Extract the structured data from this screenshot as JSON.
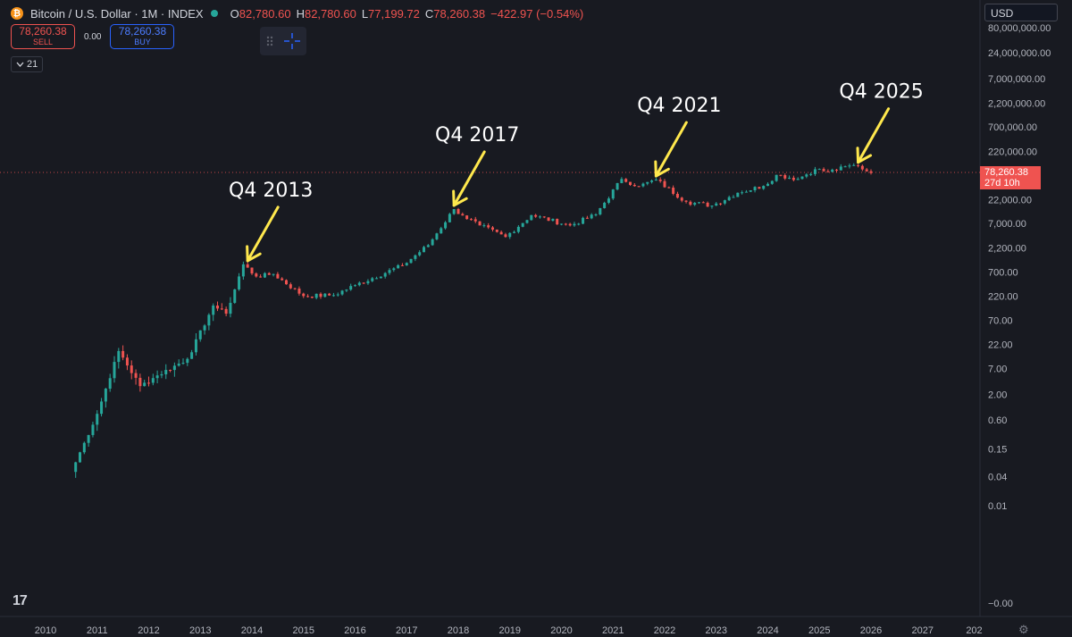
{
  "header": {
    "coin_glyph": "₿",
    "symbol": "Bitcoin / U.S. Dollar · 1M · INDEX",
    "ohlc": [
      {
        "key": "O",
        "value": "82,780.60"
      },
      {
        "key": "H",
        "value": "82,780.60"
      },
      {
        "key": "L",
        "value": "77,199.72"
      },
      {
        "key": "C",
        "value": "78,260.38"
      }
    ],
    "change": "−422.97 (−0.54%)"
  },
  "trade": {
    "sell_price": "78,260.38",
    "sell_label": "SELL",
    "spread": "0.00",
    "buy_price": "78,260.38",
    "buy_label": "BUY"
  },
  "indicator_badge": "21",
  "currency": "USD",
  "price_tag": {
    "price": "78,260.38",
    "countdown": "27d 10h",
    "value": 78260.38
  },
  "logo_text": "17",
  "colors": {
    "up": "#26a69a",
    "down": "#ef5350",
    "annotation": "#ffe84d",
    "background": "#181a21"
  },
  "chart_data": {
    "type": "candlestick",
    "y_scale": "log",
    "x_ticks": [
      "2010",
      "2011",
      "2012",
      "2013",
      "2014",
      "2015",
      "2016",
      "2017",
      "2018",
      "2019",
      "2020",
      "2021",
      "2022",
      "2023",
      "2024",
      "2025",
      "2026",
      "2027",
      "202"
    ],
    "y_ticks": [
      {
        "label": "80,000,000.00",
        "value": 80000000
      },
      {
        "label": "24,000,000.00",
        "value": 24000000
      },
      {
        "label": "7,000,000.00",
        "value": 7000000
      },
      {
        "label": "2,200,000.00",
        "value": 2200000
      },
      {
        "label": "700,000.00",
        "value": 700000
      },
      {
        "label": "220,000.00",
        "value": 220000
      },
      {
        "label": "70,000.00",
        "value": 70000
      },
      {
        "label": "22,000.00",
        "value": 22000
      },
      {
        "label": "7,000.00",
        "value": 7000
      },
      {
        "label": "2,200.00",
        "value": 2200
      },
      {
        "label": "700.00",
        "value": 700
      },
      {
        "label": "220.00",
        "value": 220
      },
      {
        "label": "70.00",
        "value": 70
      },
      {
        "label": "22.00",
        "value": 22
      },
      {
        "label": "7.00",
        "value": 7
      },
      {
        "label": "2.00",
        "value": 2
      },
      {
        "label": "0.60",
        "value": 0.6
      },
      {
        "label": "0.15",
        "value": 0.15
      },
      {
        "label": "0.04",
        "value": 0.04
      },
      {
        "label": "0.01",
        "value": 0.01
      },
      {
        "label": "−0.00",
        "value": 0.0003
      }
    ],
    "anchors": [
      [
        "2010-07",
        0.05
      ],
      [
        "2010-10",
        0.2
      ],
      [
        "2011-01",
        0.8
      ],
      [
        "2011-06",
        16
      ],
      [
        "2011-11",
        3
      ],
      [
        "2012-03",
        5
      ],
      [
        "2012-10",
        11
      ],
      [
        "2013-03",
        90
      ],
      [
        "2013-04",
        140
      ],
      [
        "2013-07",
        95
      ],
      [
        "2013-11",
        1000
      ],
      [
        "2014-02",
        560
      ],
      [
        "2014-06",
        630
      ],
      [
        "2015-01",
        220
      ],
      [
        "2015-08",
        230
      ],
      [
        "2016-01",
        370
      ],
      [
        "2016-12",
        950
      ],
      [
        "2017-06",
        2500
      ],
      [
        "2017-12",
        14000
      ],
      [
        "2018-02",
        10300
      ],
      [
        "2018-06",
        6400
      ],
      [
        "2018-12",
        3700
      ],
      [
        "2019-06",
        10500
      ],
      [
        "2020-03",
        6400
      ],
      [
        "2020-09",
        10800
      ],
      [
        "2021-03",
        58800
      ],
      [
        "2021-07",
        41500
      ],
      [
        "2021-11",
        57000
      ],
      [
        "2022-06",
        19800
      ],
      [
        "2022-12",
        16500
      ],
      [
        "2023-06",
        30400
      ],
      [
        "2023-12",
        42200
      ],
      [
        "2024-03",
        71300
      ],
      [
        "2024-08",
        59000
      ],
      [
        "2024-12",
        93400
      ],
      [
        "2025-03",
        82500
      ],
      [
        "2025-09",
        114000
      ],
      [
        "2025-10",
        109500
      ],
      [
        "2026-01",
        78260
      ]
    ],
    "last_price": 78260.38,
    "annotations": [
      {
        "text": "Q4 2013",
        "date": "2013-12",
        "value": 1000
      },
      {
        "text": "Q4 2017",
        "date": "2017-12",
        "value": 14000
      },
      {
        "text": "Q4 2021",
        "date": "2021-11",
        "value": 57000
      },
      {
        "text": "Q4 2025",
        "date": "2025-10",
        "value": 109500
      }
    ]
  }
}
